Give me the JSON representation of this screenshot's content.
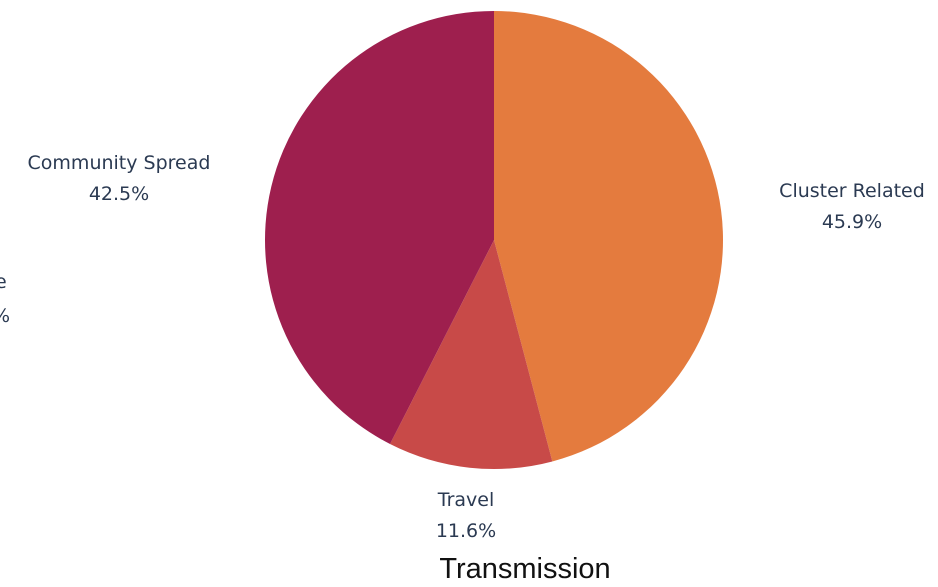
{
  "chart_data": {
    "type": "pie",
    "title": "Transmission",
    "slices": [
      {
        "name": "Cluster Related",
        "value": 45.9,
        "label": "45.9%",
        "color": "#E47B3E"
      },
      {
        "name": "Travel",
        "value": 11.6,
        "label": "11.6%",
        "color": "#C84A48"
      },
      {
        "name": "Community Spread",
        "value": 42.5,
        "label": "42.5%",
        "color": "#9E1F4E"
      }
    ],
    "clipped_label_fragments": [
      "e",
      "%"
    ]
  }
}
